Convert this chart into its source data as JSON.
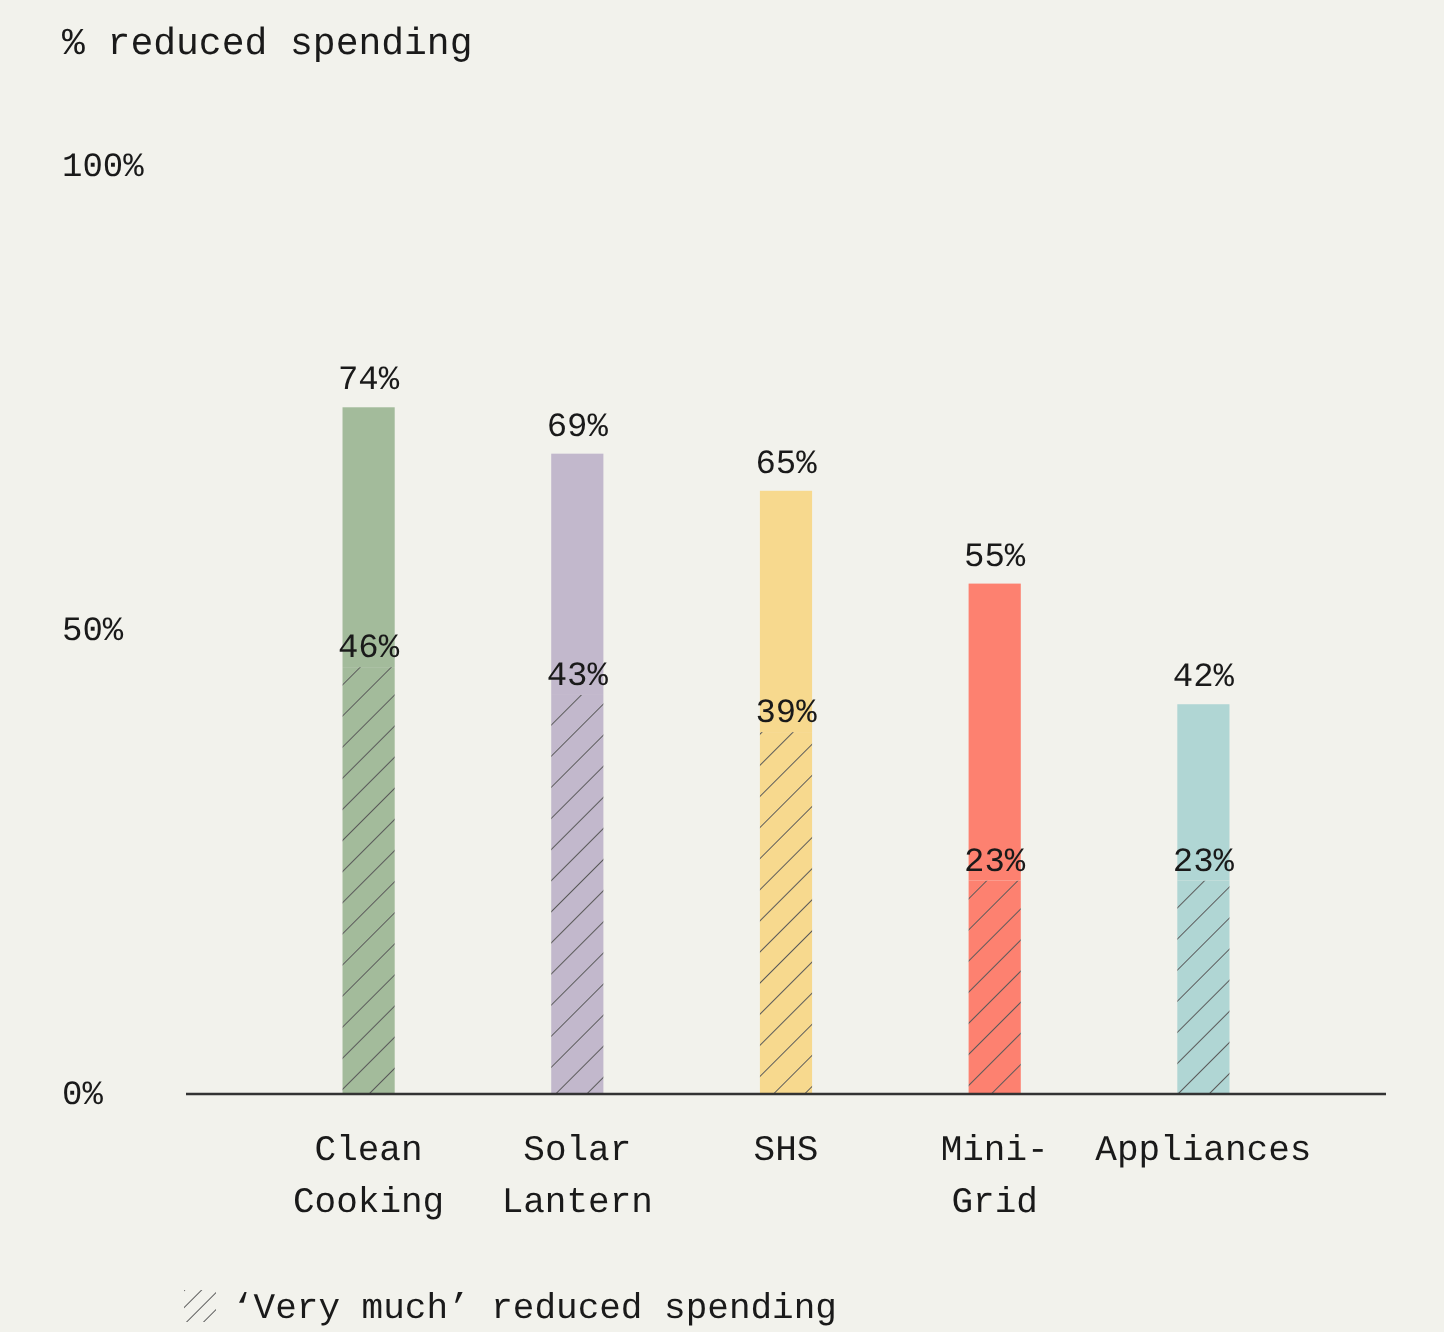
{
  "chart_data": {
    "type": "bar",
    "stacked": true,
    "ylabel": "% reduced spending",
    "categories": [
      "Clean\nCooking",
      "Solar\nLantern",
      "SHS",
      "Mini-\nGrid",
      "Appliances"
    ],
    "series": [
      {
        "name": "‘Very much’ reduced spending",
        "color": "#5a5a5a",
        "colors": [
          "#a3bb9b",
          "#c2b8cc",
          "#f7d98e",
          "#fd8170",
          "#b0d6d4"
        ],
        "values": [
          46,
          43,
          39,
          23,
          23
        ],
        "value_labels": [
          "46%",
          "43%",
          "39%",
          "23%",
          "23%"
        ]
      },
      {
        "colors": [
          "#a3bb9b",
          "#c2b8cc",
          "#f7d98e",
          "#fd8170",
          "#b0d6d4"
        ],
        "values": [
          28,
          26,
          26,
          32,
          19
        ]
      }
    ],
    "totals": [
      "74%",
      "69%",
      "65%",
      "55%",
      "42%"
    ],
    "ylim": [
      0,
      100
    ],
    "yticks": [
      {
        "value": 0,
        "label": "0%"
      },
      {
        "value": 50,
        "label": "50%"
      },
      {
        "value": 100,
        "label": "100%"
      }
    ],
    "legend": "bottom"
  }
}
